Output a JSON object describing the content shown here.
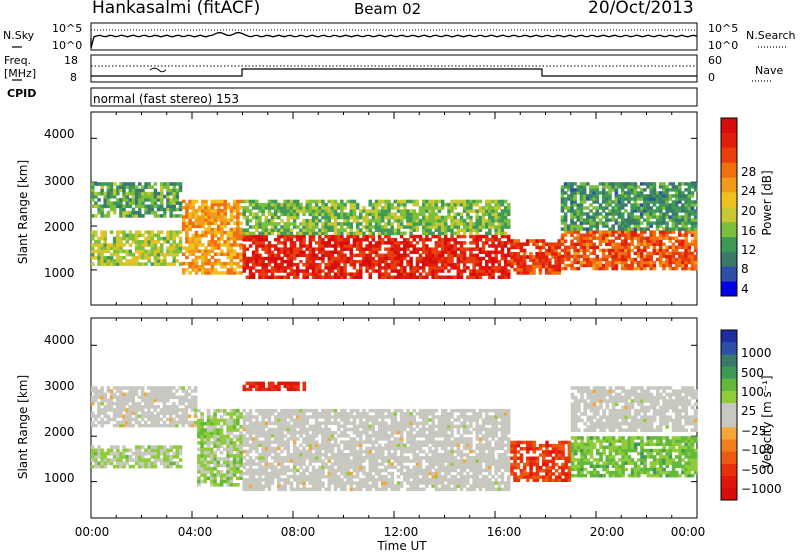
{
  "header": {
    "station": "Hankasalmi (fitACF)",
    "beam": "Beam 02",
    "date": "20/Oct/2013"
  },
  "top_panels": {
    "nsky_label": "N.Sky",
    "nsky_ticks": [
      "10^5",
      "10^0"
    ],
    "nsearch_label": "N.Search",
    "nsearch_ticks": [
      "10^5",
      "10^0"
    ],
    "freq_label_1": "Freq.",
    "freq_label_2": "[MHz]",
    "freq_ticks": [
      "18",
      "8"
    ],
    "nave_label": "Nave",
    "nave_ticks": [
      "60",
      "0"
    ],
    "cpid_label": "CPID",
    "cpid_text": "normal (fast stereo) 153"
  },
  "axes": {
    "ylabel": "Slant Range [km]",
    "yticks": [
      "4000",
      "3000",
      "2000",
      "1000"
    ],
    "xlabel": "Time UT",
    "xticks": [
      "00:00",
      "04:00",
      "08:00",
      "12:00",
      "16:00",
      "20:00",
      "00:00"
    ]
  },
  "colorbars": {
    "power": {
      "label": "Power [dB]",
      "ticks": [
        "28",
        "24",
        "20",
        "16",
        "12",
        "8",
        "4"
      ],
      "colors": [
        "#0000e6",
        "#2d4fa8",
        "#3a7a6a",
        "#3f9a58",
        "#7cbf3a",
        "#c8c832",
        "#f0c020",
        "#f29a1a",
        "#f07010",
        "#e8400c",
        "#e01e0a",
        "#d80c0a"
      ]
    },
    "velocity": {
      "label": "Velocity [m s⁻¹]",
      "ticks": [
        "1000",
        "500",
        "100",
        "25",
        "−25",
        "−100",
        "−500",
        "−1000"
      ],
      "colors": [
        "#1c2ea0",
        "#2d4fa8",
        "#3a7a6a",
        "#3f9a58",
        "#62b83a",
        "#8fcc3a",
        "#c8c8c0",
        "#c8c8c0",
        "#f3a63a",
        "#f07e1e",
        "#ec5a12",
        "#e8300c",
        "#e0160a",
        "#d80c0a"
      ]
    }
  },
  "chart_data": [
    {
      "type": "heatmap",
      "title": "Power",
      "xlabel": "Time UT",
      "ylabel": "Slant Range [km]",
      "xlim": [
        0,
        24
      ],
      "ylim": [
        200,
        4600
      ],
      "value_range": [
        0,
        32
      ],
      "regions": [
        {
          "t_start": 0.0,
          "t_end": 3.6,
          "r_low": 1100,
          "r_high": 1900,
          "value": 14
        },
        {
          "t_start": 0.0,
          "t_end": 3.6,
          "r_low": 2200,
          "r_high": 3000,
          "value": 10
        },
        {
          "t_start": 3.6,
          "t_end": 6.0,
          "r_low": 900,
          "r_high": 2600,
          "value": 20
        },
        {
          "t_start": 6.0,
          "t_end": 16.6,
          "r_low": 800,
          "r_high": 1800,
          "value": 28
        },
        {
          "t_start": 6.0,
          "t_end": 16.6,
          "r_low": 1800,
          "r_high": 2600,
          "value": 12
        },
        {
          "t_start": 16.6,
          "t_end": 18.6,
          "r_low": 900,
          "r_high": 1700,
          "value": 26
        },
        {
          "t_start": 18.6,
          "t_end": 24.0,
          "r_low": 1000,
          "r_high": 1900,
          "value": 24
        },
        {
          "t_start": 18.6,
          "t_end": 24.0,
          "r_low": 1900,
          "r_high": 3000,
          "value": 9
        }
      ]
    },
    {
      "type": "heatmap",
      "title": "Velocity",
      "xlabel": "Time UT",
      "ylabel": "Slant Range [km]",
      "xlim": [
        0,
        24
      ],
      "ylim": [
        200,
        4600
      ],
      "value_range": [
        -1000,
        1000
      ],
      "regions": [
        {
          "t_start": 0.0,
          "t_end": 3.6,
          "r_low": 1300,
          "r_high": 1800,
          "value": 150
        },
        {
          "t_start": 0.0,
          "t_end": 4.2,
          "r_low": 2200,
          "r_high": 3100,
          "value": 0
        },
        {
          "t_start": 4.2,
          "t_end": 6.0,
          "r_low": 900,
          "r_high": 2600,
          "value": 200
        },
        {
          "t_start": 6.0,
          "t_end": 16.6,
          "r_low": 800,
          "r_high": 2600,
          "value": 0
        },
        {
          "t_start": 6.0,
          "t_end": 8.5,
          "r_low": 3000,
          "r_high": 3200,
          "value": -700
        },
        {
          "t_start": 16.6,
          "t_end": 19.0,
          "r_low": 1000,
          "r_high": 1900,
          "value": -600
        },
        {
          "t_start": 19.0,
          "t_end": 24.0,
          "r_low": 1100,
          "r_high": 2000,
          "value": 300
        },
        {
          "t_start": 19.0,
          "t_end": 24.0,
          "r_low": 2100,
          "r_high": 3100,
          "value": 0
        }
      ]
    }
  ]
}
